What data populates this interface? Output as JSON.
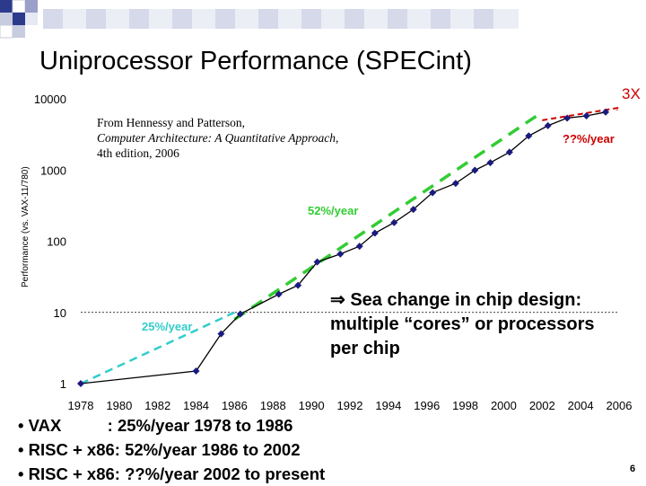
{
  "slide": {
    "title": "Uniprocessor Performance (SPECint)",
    "page_number": "6"
  },
  "source": {
    "line1": "From Hennessy and Patterson,",
    "book": "Computer Architecture: A Quantitative Approach",
    "edition": ", 4th edition, 2006"
  },
  "callout": {
    "arrow": "⇒",
    "text": " Sea change in chip design: multiple “cores” or processors per chip"
  },
  "bullets": [
    "• VAX          : 25%/year 1978 to 1986",
    "• RISC + x86: 52%/year 1986 to 2002",
    "• RISC + x86: ??%/year 2002 to present"
  ],
  "chart_data": {
    "type": "line",
    "ylabel": "Performance (vs. VAX-11/780)",
    "yscale": "log",
    "ylim": [
      1,
      10000
    ],
    "yticks": [
      1,
      10,
      100,
      1000,
      10000
    ],
    "xlim": [
      1978,
      2006
    ],
    "xticks": [
      1978,
      1980,
      1982,
      1984,
      1986,
      1988,
      1990,
      1992,
      1994,
      1996,
      1998,
      2000,
      2002,
      2004,
      2006
    ],
    "reference_line_y": 10,
    "series": [
      {
        "values": [
          [
            1978,
            1
          ],
          [
            1984,
            1.5
          ],
          [
            1985.3,
            5
          ],
          [
            1986.3,
            9.5
          ],
          [
            1988.3,
            18
          ],
          [
            1989.3,
            24
          ],
          [
            1990.3,
            51
          ],
          [
            1991.5,
            66
          ],
          [
            1992.5,
            85
          ],
          [
            1993.3,
            130
          ],
          [
            1994.3,
            183
          ],
          [
            1995.3,
            280
          ],
          [
            1996.3,
            481
          ],
          [
            1997.5,
            649
          ],
          [
            1998.5,
            993
          ],
          [
            1999.3,
            1267
          ],
          [
            2000.3,
            1779
          ],
          [
            2001.3,
            3016
          ],
          [
            2002.3,
            4195
          ],
          [
            2003.3,
            5364
          ],
          [
            2004.3,
            5764
          ],
          [
            2005.3,
            6505
          ]
        ]
      }
    ],
    "trend_lines": [
      {
        "label": "25%/year",
        "color": "#33cccc",
        "from": [
          1978,
          1
        ],
        "to": [
          1986,
          10
        ]
      },
      {
        "label": "52%/year",
        "color": "#33cc33",
        "from": [
          1986,
          8
        ],
        "to": [
          2002,
          6500
        ]
      },
      {
        "label": "??%/year",
        "color": "#cc0000",
        "from": [
          2002,
          5000
        ],
        "to": [
          2006,
          7500
        ]
      },
      {
        "label": "3X",
        "color": "#cc0000"
      }
    ],
    "colors": {
      "data": "#1a1a80",
      "fit_green": "#33cc33",
      "fit_cyan": "#33cccc",
      "fit_red": "#cc0000"
    }
  }
}
